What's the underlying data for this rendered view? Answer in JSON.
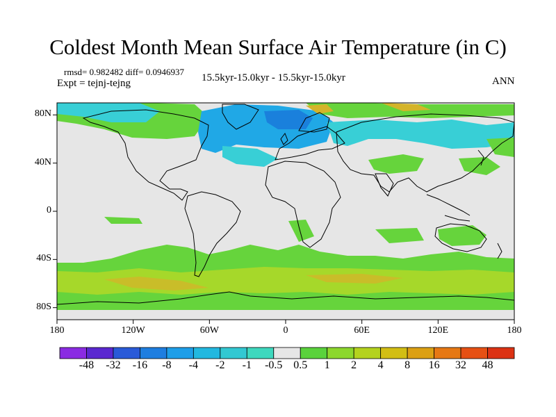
{
  "title": "Coldest Month Mean Surface Air Temperature (in C)",
  "stats": "rmsd= 0.982482 diff= 0.0946937",
  "expt": "Expt = tejnj-tejng",
  "period": "15.5kyr-15.0kyr - 15.5kyr-15.0kyr",
  "season": "ANN",
  "axes": {
    "lat_ticks": [
      {
        "label": "80N",
        "value": 80
      },
      {
        "label": "40N",
        "value": 40
      },
      {
        "label": "0",
        "value": 0
      },
      {
        "label": "40S",
        "value": -40
      },
      {
        "label": "80S",
        "value": -80
      }
    ],
    "lon_ticks": [
      {
        "label": "180",
        "value": -180
      },
      {
        "label": "120W",
        "value": -120
      },
      {
        "label": "60W",
        "value": -60
      },
      {
        "label": "0",
        "value": 0
      },
      {
        "label": "60E",
        "value": 60
      },
      {
        "label": "120E",
        "value": 120
      },
      {
        "label": "180",
        "value": 180
      }
    ],
    "lat_range": [
      -90,
      90
    ],
    "lon_range": [
      -180,
      180
    ]
  },
  "colorbar": {
    "labels": [
      "-48",
      "-32",
      "-16",
      "-8",
      "-4",
      "-2",
      "-1",
      "-0.5",
      "0.5",
      "1",
      "2",
      "4",
      "8",
      "16",
      "32",
      "48"
    ],
    "colors": [
      "#8a2be2",
      "#5a28d0",
      "#2a5ad8",
      "#1e7ee0",
      "#1e9ee8",
      "#22b8e0",
      "#32c8d2",
      "#3ed8be",
      "#e6e6e6",
      "#5ad23c",
      "#8cd72d",
      "#b4d21e",
      "#d2be14",
      "#dca014",
      "#e67814",
      "#e65014",
      "#dc3214"
    ]
  },
  "colors": {
    "neutral": "#e6e6e6",
    "pos_small": "#66d43c",
    "pos_mid": "#a6d82a",
    "pos_high": "#d4b42a",
    "neg_small": "#38cfd6",
    "neg_mid": "#20a8e6",
    "neg_high": "#1a80dc",
    "coast": "#000000"
  }
}
